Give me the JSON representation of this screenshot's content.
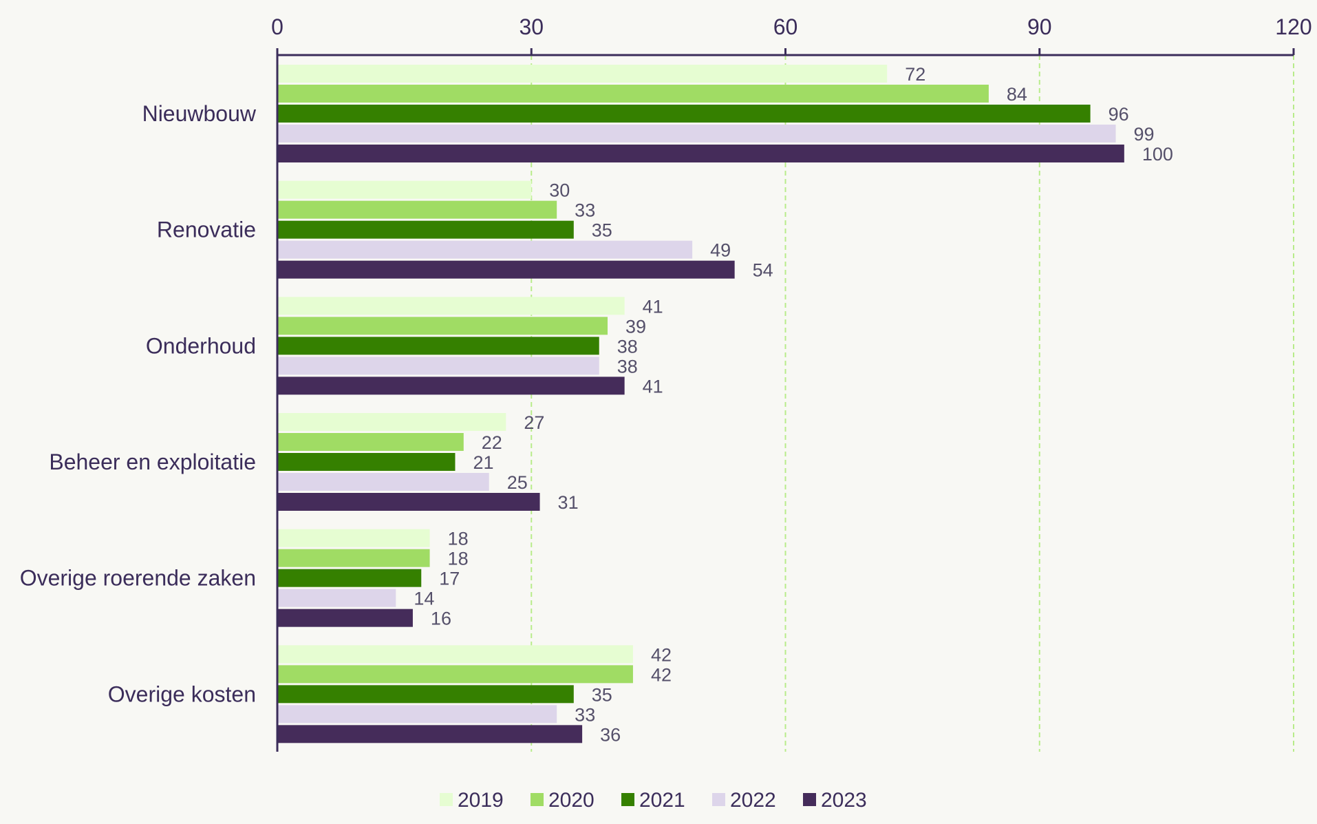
{
  "chart_data": {
    "type": "bar",
    "orientation": "horizontal",
    "title": "",
    "xlabel": "",
    "ylabel": "",
    "xlim": [
      0,
      120
    ],
    "x_ticks": [
      0,
      30,
      60,
      90,
      120
    ],
    "grid": true,
    "legend_position": "bottom",
    "categories": [
      "Nieuwbouw",
      "Renovatie",
      "Onderhoud",
      "Beheer en exploitatie",
      "Overige roerende zaken",
      "Overige kosten"
    ],
    "series": [
      {
        "name": "2019",
        "color": "#e6fdd2",
        "values": [
          72,
          30,
          41,
          27,
          18,
          42
        ]
      },
      {
        "name": "2020",
        "color": "#a0dc64",
        "values": [
          84,
          33,
          39,
          22,
          18,
          42
        ]
      },
      {
        "name": "2021",
        "color": "#358000",
        "values": [
          96,
          35,
          38,
          21,
          17,
          35
        ]
      },
      {
        "name": "2022",
        "color": "#ddd5ea",
        "values": [
          99,
          49,
          38,
          25,
          14,
          33
        ]
      },
      {
        "name": "2023",
        "color": "#452c5a",
        "values": [
          100,
          54,
          41,
          31,
          16,
          36
        ]
      }
    ],
    "colors": {
      "axis": "#3b2d5a",
      "grid": "#b8ec8a",
      "text": "#3b2d5a",
      "value_text": "#55506a"
    }
  }
}
